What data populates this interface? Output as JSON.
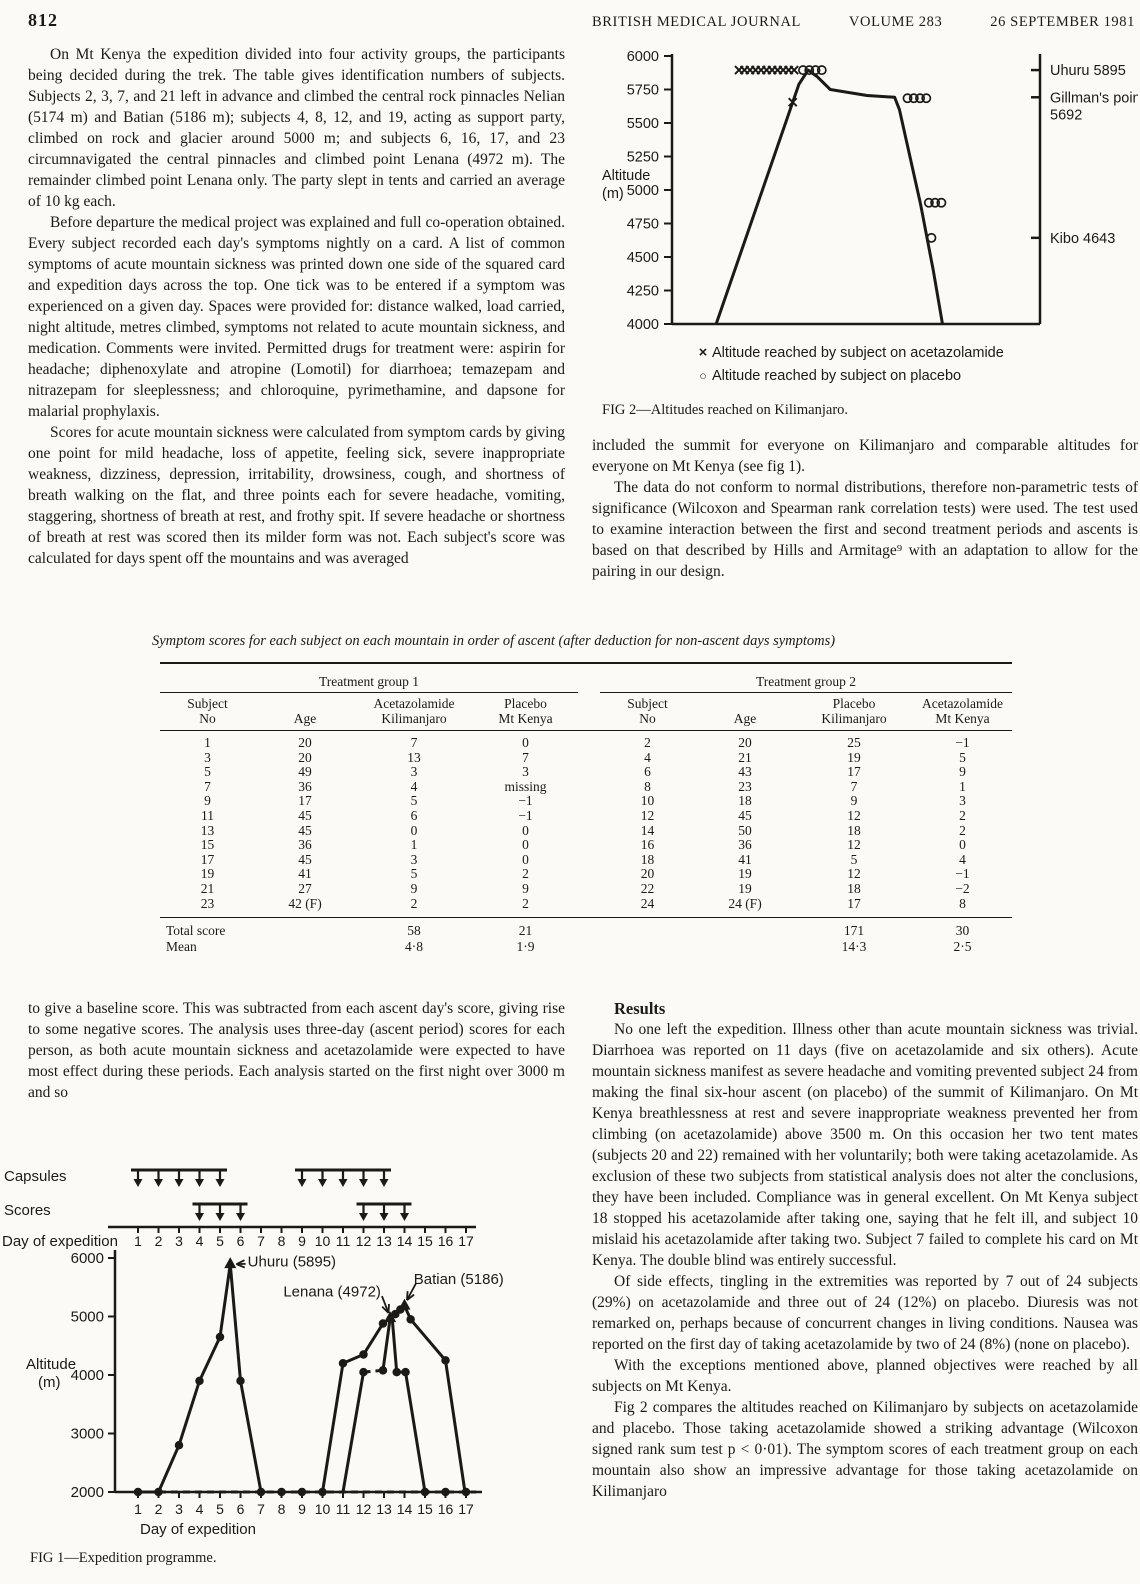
{
  "colors": {
    "paper": "#fbfaf6",
    "ink": "#1b1a17"
  },
  "header": {
    "page_number": "812",
    "journal": "BRITISH MEDICAL JOURNAL",
    "volume": "VOLUME 283",
    "date": "26 SEPTEMBER 1981"
  },
  "article": {
    "left_paragraphs": [
      "On Mt Kenya the expedition divided into four activity groups, the participants being decided during the trek. The table gives identification numbers of subjects. Subjects 2, 3, 7, and 21 left in advance and climbed the central rock pinnacles Nelian (5174 m) and Batian (5186 m); subjects 4, 8, 12, and 19, acting as support party, climbed on rock and glacier around 5000 m; and subjects 6, 16, 17, and 23 circumnavigated the central pinnacles and climbed point Lenana (4972 m). The remainder climbed point Lenana only. The party slept in tents and carried an average of 10 kg each.",
      "Before departure the medical project was explained and full co-operation obtained. Every subject recorded each day's symptoms nightly on a card. A list of common symptoms of acute mountain sickness was printed down one side of the squared card and expedition days across the top. One tick was to be entered if a symptom was experienced on a given day. Spaces were provided for: distance walked, load carried, night altitude, metres climbed, symptoms not related to acute mountain sickness, and medication. Comments were invited. Permitted drugs for treatment were: aspirin for headache; diphenoxylate and atropine (Lomotil) for diarrhoea; temazepam and nitrazepam for sleeplessness; and chloroquine, pyrimethamine, and dapsone for malarial prophylaxis.",
      "Scores for acute mountain sickness were calculated from symptom cards by giving one point for mild headache, loss of appetite, feeling sick, severe inappropriate weakness, dizziness, depression, irritability, drowsiness, cough, and shortness of breath walking on the flat, and three points each for severe headache, vomiting, staggering, shortness of breath at rest, and frothy spit. If severe headache or shortness of breath at rest was scored then its milder form was not. Each subject's score was calculated for days spent off the mountains and was averaged"
    ],
    "right_paragraphs": [
      "included the summit for everyone on Kilimanjaro and comparable altitudes for everyone on Mt Kenya (see fig 1).",
      "The data do not conform to normal distributions, therefore non-parametric tests of significance (Wilcoxon and Spearman rank correlation tests) were used. The test used to examine interaction between the first and second treatment periods and ascents is based on that described by Hills and Armitage⁹ with an adaptation to allow for the pairing in our design."
    ],
    "left_bottom_paragraph": "to give a baseline score. This was subtracted from each ascent day's score, giving rise to some negative scores. The analysis uses three-day (ascent period) scores for each person, as both acute mountain sickness and acetazolamide were expected to have most effect during these periods. Each analysis started on the first night over 3000 m and so",
    "results": {
      "heading": "Results",
      "paragraphs": [
        "No one left the expedition. Illness other than acute mountain sickness was trivial. Diarrhoea was reported on 11 days (five on acetazolamide and six others). Acute mountain sickness manifest as severe headache and vomiting prevented subject 24 from making the final six-hour ascent (on placebo) of the summit of Kilimanjaro. On Mt Kenya breathlessness at rest and severe inappropriate weakness prevented her from climbing (on acetazolamide) above 3500 m. On this occasion her two tent mates (subjects 20 and 22) remained with her voluntarily; both were taking acetazolamide. As exclusion of these two subjects from statistical analysis does not alter the conclusions, they have been included. Compliance was in general excellent. On Mt Kenya subject 18 stopped his acetazolamide after taking one, saying that he felt ill, and subject 10 mislaid his acetazolamide after taking two. Subject 7 failed to complete his card on Mt Kenya. The double blind was entirely successful.",
        "Of side effects, tingling in the extremities was reported by 7 out of 24 subjects (29%) on acetazolamide and three out of 24 (12%) on placebo. Diuresis was not remarked on, perhaps because of concurrent changes in living conditions. Nausea was reported on the first day of taking acetazolamide by two of 24 (8%) (none on placebo).",
        "With the exceptions mentioned above, planned objectives were reached by all subjects on Mt Kenya.",
        "Fig 2 compares the altitudes reached on Kilimanjaro by subjects on acetazolamide and placebo. Those taking acetazolamide showed a striking advantage (Wilcoxon signed rank sum test p < 0·01). The symptom scores of each treatment group on each mountain also show an impressive advantage for those taking acetazolamide on Kilimanjaro"
      ]
    }
  },
  "table": {
    "caption": "Symptom scores for each subject on each mountain in order of ascent (after deduction for non-ascent days symptoms)",
    "group1_header": "Treatment group 1",
    "group2_header": "Treatment group 2",
    "g1_cols": [
      "Subject\nNo",
      "Age",
      "Acetazolamide\nKilimanjaro",
      "Placebo\nMt Kenya"
    ],
    "g2_cols": [
      "Subject\nNo",
      "Age",
      "Placebo\nKilimanjaro",
      "Acetazolamide\nMt Kenya"
    ],
    "rows": [
      [
        "1",
        "20",
        "7",
        "0",
        "2",
        "20",
        "25",
        "−1"
      ],
      [
        "3",
        "20",
        "13",
        "7",
        "4",
        "21",
        "19",
        "5"
      ],
      [
        "5",
        "49",
        "3",
        "3",
        "6",
        "43",
        "17",
        "9"
      ],
      [
        "7",
        "36",
        "4",
        "missing",
        "8",
        "23",
        "7",
        "1"
      ],
      [
        "9",
        "17",
        "5",
        "−1",
        "10",
        "18",
        "9",
        "3"
      ],
      [
        "11",
        "45",
        "6",
        "−1",
        "12",
        "45",
        "12",
        "2"
      ],
      [
        "13",
        "45",
        "0",
        "0",
        "14",
        "50",
        "18",
        "2"
      ],
      [
        "15",
        "36",
        "1",
        "0",
        "16",
        "36",
        "12",
        "0"
      ],
      [
        "17",
        "45",
        "3",
        "0",
        "18",
        "41",
        "5",
        "4"
      ],
      [
        "19",
        "41",
        "5",
        "2",
        "20",
        "19",
        "12",
        "−1"
      ],
      [
        "21",
        "27",
        "9",
        "9",
        "22",
        "19",
        "18",
        "−2"
      ],
      [
        "23",
        "42 (F)",
        "2",
        "2",
        "24",
        "24 (F)",
        "17",
        "8"
      ]
    ],
    "total_label": "Total score",
    "mean_label": "Mean",
    "totals": [
      "58",
      "21",
      "171",
      "30"
    ],
    "means": [
      "4·8",
      "1·9",
      "14·3",
      "2·5"
    ]
  },
  "chart_data": [
    {
      "id": "fig2",
      "type": "line",
      "title": "FIG 2—Altitudes reached on Kilimanjaro.",
      "ylabel": "Altitude (m)",
      "ylabel_lines": [
        "Altitude",
        "(m)"
      ],
      "ylim": [
        4000,
        6000
      ],
      "yticks": [
        6000,
        5750,
        5500,
        5250,
        5000,
        4750,
        4500,
        4250,
        4000
      ],
      "grid": false,
      "legend": [
        {
          "marker": "×",
          "label": "Altitude reached by subject on acetazolamide"
        },
        {
          "marker": "○",
          "label": "Altitude reached by subject on placebo"
        }
      ],
      "right_labels": [
        {
          "lines": [
            "Uhuru 5895"
          ],
          "alt": 5895
        },
        {
          "lines": [
            "Gillman's point",
            "5692"
          ],
          "alt": 5692
        },
        {
          "lines": [
            "Kibo 4643"
          ],
          "alt": 4643
        }
      ],
      "acetazolamide_altitudes": [
        5895,
        5895,
        5895,
        5895,
        5895,
        5895,
        5895,
        5895,
        5895,
        5895,
        5895,
        5655
      ],
      "placebo_altitudes": [
        5895,
        5895,
        5895,
        5895,
        5692,
        5692,
        5692,
        5692,
        4905,
        4905,
        4905,
        4643
      ],
      "profile": [
        [
          1.2,
          4000
        ],
        [
          3.45,
          5790
        ],
        [
          3.7,
          5895
        ],
        [
          3.95,
          5845
        ],
        [
          4.3,
          5750
        ],
        [
          5.3,
          5705
        ],
        [
          6.05,
          5692
        ],
        [
          6.18,
          5600
        ],
        [
          6.75,
          4900
        ],
        [
          7.1,
          4400
        ],
        [
          7.35,
          4000
        ]
      ],
      "acet_markers": [
        [
          1.82,
          5895
        ],
        [
          1.97,
          5895
        ],
        [
          2.12,
          5895
        ],
        [
          2.27,
          5895
        ],
        [
          2.42,
          5895
        ],
        [
          2.57,
          5895
        ],
        [
          2.72,
          5895
        ],
        [
          2.87,
          5895
        ],
        [
          3.02,
          5895
        ],
        [
          3.17,
          5895
        ],
        [
          3.32,
          5895
        ],
        [
          3.28,
          5655
        ]
      ],
      "placebo_markers": [
        [
          3.56,
          5895
        ],
        [
          3.73,
          5895
        ],
        [
          3.9,
          5895
        ],
        [
          4.07,
          5895
        ],
        [
          6.4,
          5685
        ],
        [
          6.57,
          5685
        ],
        [
          6.74,
          5685
        ],
        [
          6.91,
          5685
        ],
        [
          6.98,
          4905
        ],
        [
          7.15,
          4905
        ],
        [
          7.32,
          4905
        ],
        [
          7.05,
          4643
        ]
      ]
    },
    {
      "id": "fig1",
      "type": "line",
      "title": "FIG 1—Expedition programme.",
      "xlabel": "Day of expedition",
      "ylabel": "Altitude (m)",
      "ylabel_lines": [
        "Altitude",
        "(m)"
      ],
      "xlim": [
        1,
        17
      ],
      "ylim": [
        2000,
        6000
      ],
      "xticks": [
        1,
        2,
        3,
        4,
        5,
        6,
        7,
        8,
        9,
        10,
        11,
        12,
        13,
        14,
        15,
        16,
        17
      ],
      "yticks": [
        6000,
        5000,
        4000,
        3000,
        2000
      ],
      "grid": false,
      "labels": {
        "capsules": "Capsules",
        "scores": "Scores",
        "day_axis": "Day of expedition"
      },
      "capsule_days": [
        [
          1,
          5
        ],
        [
          9,
          13
        ]
      ],
      "score_days": [
        [
          4,
          6
        ],
        [
          12,
          14
        ]
      ],
      "series": [
        {
          "name": "Kilimanjaro ascent",
          "points": [
            [
              1,
              2000
            ],
            [
              2,
              2000
            ],
            [
              3,
              2800
            ],
            [
              4,
              3900
            ],
            [
              5,
              4650
            ],
            [
              5.5,
              5895
            ],
            [
              6,
              3900
            ],
            [
              7,
              2000
            ]
          ],
          "dots": [
            [
              2,
              2000
            ],
            [
              3,
              2800
            ],
            [
              4,
              3900
            ],
            [
              5,
              4650
            ],
            [
              6,
              3900
            ]
          ]
        },
        {
          "name": "base level",
          "dash": true,
          "points": [
            [
              0.85,
              2000
            ],
            [
              17.5,
              2000
            ]
          ],
          "dots": [
            [
              1,
              2000
            ],
            [
              7,
              2000
            ],
            [
              8,
              2000
            ],
            [
              9,
              2000
            ],
            [
              10,
              2000
            ],
            [
              15,
              2000
            ],
            [
              16,
              2000
            ],
            [
              17,
              2000
            ]
          ]
        },
        {
          "name": "Mt Kenya ascent A",
          "points": [
            [
              10,
              2000
            ],
            [
              11,
              4200
            ],
            [
              12,
              4350
            ],
            [
              12.95,
              4880
            ],
            [
              13.3,
              4972
            ]
          ],
          "dots": [
            [
              11,
              4200
            ],
            [
              12,
              4350
            ],
            [
              12.95,
              4880
            ]
          ]
        },
        {
          "name": "Mt Kenya summit traverse",
          "dash": true,
          "points": [
            [
              13.3,
              4972
            ],
            [
              13.62,
              5080
            ],
            [
              14,
              5186
            ]
          ],
          "dots": [
            [
              13.55,
              5040
            ],
            [
              13.8,
              5120
            ]
          ]
        },
        {
          "name": "Mt Kenya descent A",
          "points": [
            [
              14,
              5186
            ],
            [
              14.3,
              4950
            ],
            [
              16,
              4250
            ],
            [
              16.95,
              2000
            ]
          ],
          "dots": [
            [
              14.3,
              4950
            ],
            [
              16,
              4250
            ]
          ]
        },
        {
          "name": "Mt Kenya ascent B",
          "points": [
            [
              11,
              2000
            ],
            [
              12,
              4050
            ]
          ],
          "dots": [
            [
              12,
              4050
            ]
          ]
        },
        {
          "name": "Mt Kenya plateau B",
          "dash": true,
          "points": [
            [
              12,
              4050
            ],
            [
              12.95,
              4080
            ]
          ],
          "dots": [
            [
              12.95,
              4080
            ]
          ]
        },
        {
          "name": "Mt Kenya ascent B2",
          "points": [
            [
              12.95,
              4080
            ],
            [
              13.3,
              4972
            ]
          ]
        },
        {
          "name": "Mt Kenya descent B",
          "points": [
            [
              13.4,
              4972
            ],
            [
              13.62,
              4050
            ]
          ],
          "dots": [
            [
              13.62,
              4050
            ]
          ]
        },
        {
          "name": "Mt Kenya plateau B down",
          "dash": true,
          "points": [
            [
              13.62,
              4050
            ],
            [
              14.05,
              4050
            ]
          ],
          "dots": [
            [
              14.05,
              4050
            ]
          ]
        },
        {
          "name": "Mt Kenya descent B2",
          "points": [
            [
              14.05,
              4050
            ],
            [
              15,
              2000
            ]
          ]
        }
      ],
      "annotations": [
        {
          "label": "Uhuru (5895)",
          "day": 5.5,
          "alt": 5895,
          "label_day": 6.35,
          "label_alt": 5940,
          "anchor": "start",
          "arrow": [
            [
              6.25,
              5900
            ],
            [
              5.8,
              5895
            ]
          ]
        },
        {
          "label": "Lenana (4972)",
          "day": 13.3,
          "alt": 4972,
          "label_day": 12.85,
          "label_alt": 5430,
          "anchor": "end",
          "arrow": [
            [
              12.9,
              5350
            ],
            [
              13.22,
              5060
            ]
          ]
        },
        {
          "label": "Batian (5186)",
          "day": 14,
          "alt": 5186,
          "label_day": 14.45,
          "label_alt": 5640,
          "anchor": "start",
          "arrow": [
            [
              14.55,
              5560
            ],
            [
              14.12,
              5280
            ]
          ]
        }
      ]
    }
  ],
  "figures": {
    "fig2_caption": "FIG 2—Altitudes reached on Kilimanjaro.",
    "fig1_caption": "FIG 1—Expedition programme."
  }
}
